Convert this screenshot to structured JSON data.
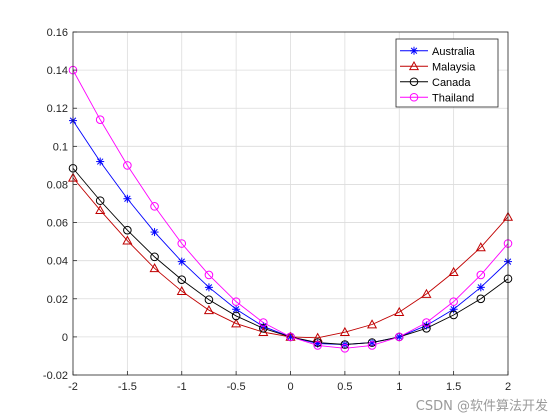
{
  "chart_data": {
    "type": "line",
    "title": "",
    "xlabel": "",
    "ylabel": "",
    "xlim": [
      -2,
      2
    ],
    "ylim": [
      -0.02,
      0.16
    ],
    "grid": true,
    "legend_position": "top-right",
    "x_ticks": [
      "-2",
      "-1.5",
      "-1",
      "-0.5",
      "0",
      "0.5",
      "1",
      "1.5",
      "2"
    ],
    "y_ticks": [
      "-0.02",
      "0",
      "0.02",
      "0.04",
      "0.06",
      "0.08",
      "0.1",
      "0.12",
      "0.14",
      "0.16"
    ],
    "x": [
      -2,
      -1.75,
      -1.5,
      -1.25,
      -1,
      -0.75,
      -0.5,
      -0.25,
      0,
      0.25,
      0.5,
      0.75,
      1,
      1.25,
      1.5,
      1.75,
      2
    ],
    "series": [
      {
        "name": "Australia",
        "color": "#0000ff",
        "marker": "asterisk",
        "values": [
          0.1135,
          0.092,
          0.0725,
          0.055,
          0.0395,
          0.026,
          0.0145,
          0.0055,
          0,
          -0.0035,
          -0.004,
          -0.003,
          0,
          0.006,
          0.0145,
          0.026,
          0.0395
        ]
      },
      {
        "name": "Malaysia",
        "color": "#c00000",
        "marker": "triangle",
        "values": [
          0.0835,
          0.0665,
          0.0505,
          0.036,
          0.024,
          0.014,
          0.007,
          0.0025,
          0,
          -0.0005,
          0.0025,
          0.0065,
          0.013,
          0.0225,
          0.034,
          0.047,
          0.063
        ]
      },
      {
        "name": "Canada",
        "color": "#000000",
        "marker": "circle",
        "values": [
          0.0885,
          0.0715,
          0.056,
          0.042,
          0.03,
          0.0195,
          0.011,
          0.0045,
          0,
          -0.003,
          -0.004,
          -0.003,
          0,
          0.0045,
          0.0115,
          0.02,
          0.0305
        ]
      },
      {
        "name": "Thailand",
        "color": "#ff00ff",
        "marker": "circle",
        "values": [
          0.14,
          0.114,
          0.09,
          0.0685,
          0.049,
          0.0325,
          0.0185,
          0.0075,
          0,
          -0.0045,
          -0.006,
          -0.0045,
          0,
          0.0075,
          0.0185,
          0.0325,
          0.049
        ]
      }
    ]
  },
  "watermark": "CSDN @软件算法开发"
}
